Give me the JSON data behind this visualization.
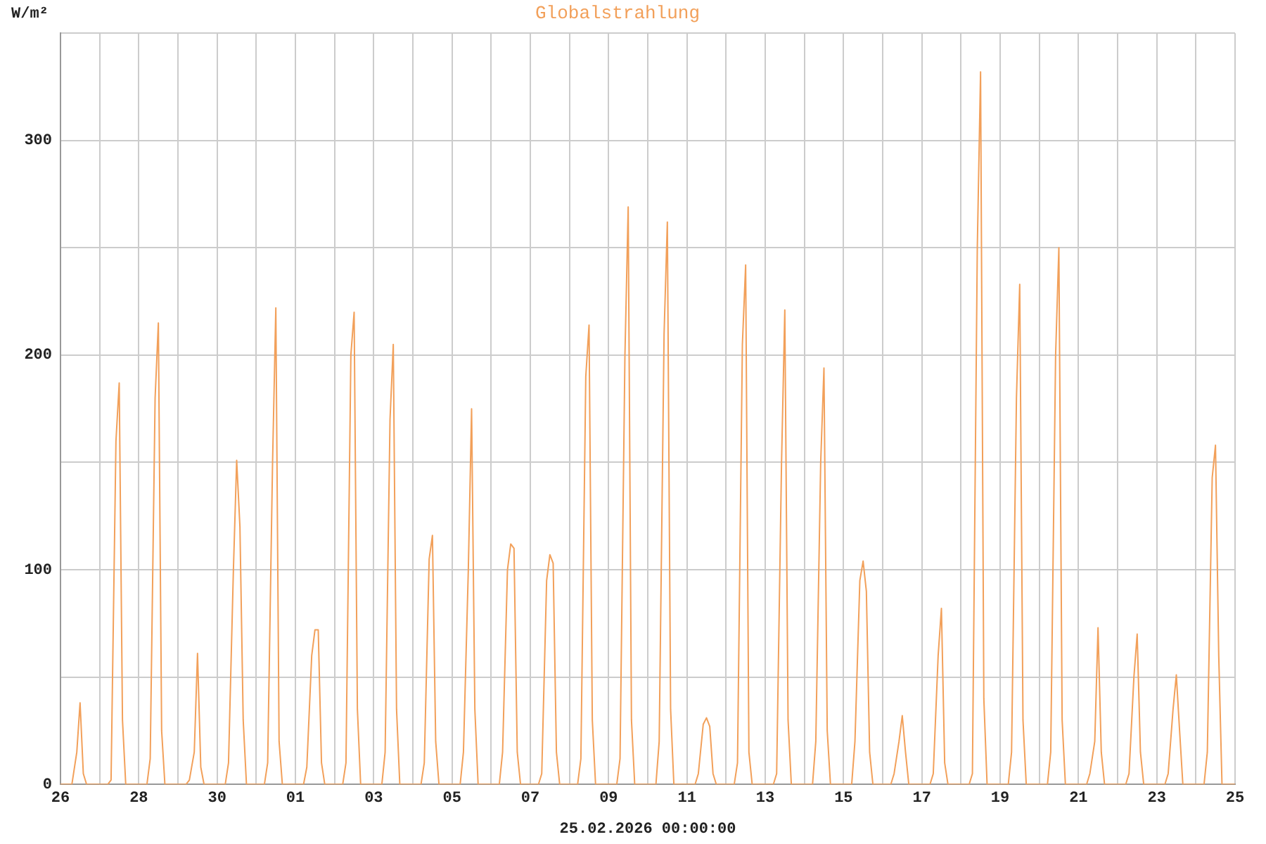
{
  "chart_data": {
    "type": "line",
    "title": "Globalstrahlung",
    "ylabel": "W/m²",
    "xlabel": "25.02.2026 00:00:00",
    "x": [
      "2026-01-26T00:00",
      "2026-01-26T05:00",
      "2026-01-26T07:00",
      "2026-01-26T10:00",
      "2026-01-26T12:00",
      "2026-01-26T14:00",
      "2026-01-26T16:00",
      "2026-01-26T18:00",
      "2026-01-27T05:00",
      "2026-01-27T07:00",
      "2026-01-27T10:00",
      "2026-01-27T12:00",
      "2026-01-27T14:00",
      "2026-01-27T16:00",
      "2026-01-27T18:00",
      "2026-01-28T05:00",
      "2026-01-28T07:00",
      "2026-01-28T10:00",
      "2026-01-28T12:00",
      "2026-01-28T14:00",
      "2026-01-28T16:00",
      "2026-01-28T18:00",
      "2026-01-29T05:00",
      "2026-01-29T07:00",
      "2026-01-29T10:00",
      "2026-01-29T12:00",
      "2026-01-29T14:00",
      "2026-01-29T16:00",
      "2026-01-29T18:00",
      "2026-01-30T05:00",
      "2026-01-30T07:00",
      "2026-01-30T10:00",
      "2026-01-30T12:00",
      "2026-01-30T14:00",
      "2026-01-30T16:00",
      "2026-01-30T18:00",
      "2026-01-31T05:00",
      "2026-01-31T07:00",
      "2026-01-31T10:00",
      "2026-01-31T12:00",
      "2026-01-31T14:00",
      "2026-01-31T16:00",
      "2026-01-31T18:00",
      "2026-02-01T05:00",
      "2026-02-01T07:00",
      "2026-02-01T10:00",
      "2026-02-01T12:00",
      "2026-02-01T14:00",
      "2026-02-01T16:00",
      "2026-02-01T18:00",
      "2026-02-02T05:00",
      "2026-02-02T07:00",
      "2026-02-02T10:00",
      "2026-02-02T12:00",
      "2026-02-02T14:00",
      "2026-02-02T16:00",
      "2026-02-02T18:00",
      "2026-02-03T05:00",
      "2026-02-03T07:00",
      "2026-02-03T10:00",
      "2026-02-03T12:00",
      "2026-02-03T14:00",
      "2026-02-03T16:00",
      "2026-02-03T18:00",
      "2026-02-04T05:00",
      "2026-02-04T07:00",
      "2026-02-04T10:00",
      "2026-02-04T12:00",
      "2026-02-04T14:00",
      "2026-02-04T16:00",
      "2026-02-04T18:00",
      "2026-02-05T05:00",
      "2026-02-05T07:00",
      "2026-02-05T10:00",
      "2026-02-05T12:00",
      "2026-02-05T14:00",
      "2026-02-05T16:00",
      "2026-02-05T18:00",
      "2026-02-06T05:00",
      "2026-02-06T07:00",
      "2026-02-06T10:00",
      "2026-02-06T12:00",
      "2026-02-06T14:00",
      "2026-02-06T16:00",
      "2026-02-06T18:00",
      "2026-02-07T05:00",
      "2026-02-07T07:00",
      "2026-02-07T10:00",
      "2026-02-07T12:00",
      "2026-02-07T14:00",
      "2026-02-07T16:00",
      "2026-02-07T18:00",
      "2026-02-08T05:00",
      "2026-02-08T07:00",
      "2026-02-08T10:00",
      "2026-02-08T12:00",
      "2026-02-08T14:00",
      "2026-02-08T16:00",
      "2026-02-08T18:00",
      "2026-02-09T05:00",
      "2026-02-09T07:00",
      "2026-02-09T10:00",
      "2026-02-09T12:00",
      "2026-02-09T14:00",
      "2026-02-09T16:00",
      "2026-02-09T18:00",
      "2026-02-10T05:00",
      "2026-02-10T07:00",
      "2026-02-10T10:00",
      "2026-02-10T12:00",
      "2026-02-10T14:00",
      "2026-02-10T16:00",
      "2026-02-10T18:00",
      "2026-02-11T05:00",
      "2026-02-11T07:00",
      "2026-02-11T10:00",
      "2026-02-11T12:00",
      "2026-02-11T14:00",
      "2026-02-11T16:00",
      "2026-02-11T18:00",
      "2026-02-12T05:00",
      "2026-02-12T07:00",
      "2026-02-12T10:00",
      "2026-02-12T12:00",
      "2026-02-12T14:00",
      "2026-02-12T16:00",
      "2026-02-12T18:00",
      "2026-02-13T05:00",
      "2026-02-13T07:00",
      "2026-02-13T10:00",
      "2026-02-13T12:00",
      "2026-02-13T14:00",
      "2026-02-13T16:00",
      "2026-02-13T18:00",
      "2026-02-14T05:00",
      "2026-02-14T07:00",
      "2026-02-14T10:00",
      "2026-02-14T12:00",
      "2026-02-14T14:00",
      "2026-02-14T16:00",
      "2026-02-14T18:00",
      "2026-02-15T05:00",
      "2026-02-15T07:00",
      "2026-02-15T10:00",
      "2026-02-15T12:00",
      "2026-02-15T14:00",
      "2026-02-15T16:00",
      "2026-02-15T18:00",
      "2026-02-16T05:00",
      "2026-02-16T07:00",
      "2026-02-16T10:00",
      "2026-02-16T12:00",
      "2026-02-16T14:00",
      "2026-02-16T16:00",
      "2026-02-16T18:00",
      "2026-02-17T05:00",
      "2026-02-17T07:00",
      "2026-02-17T10:00",
      "2026-02-17T12:00",
      "2026-02-17T14:00",
      "2026-02-17T16:00",
      "2026-02-17T18:00",
      "2026-02-18T05:00",
      "2026-02-18T07:00",
      "2026-02-18T10:00",
      "2026-02-18T12:00",
      "2026-02-18T14:00",
      "2026-02-18T16:00",
      "2026-02-18T18:00",
      "2026-02-19T05:00",
      "2026-02-19T07:00",
      "2026-02-19T10:00",
      "2026-02-19T12:00",
      "2026-02-19T14:00",
      "2026-02-19T16:00",
      "2026-02-19T18:00",
      "2026-02-20T05:00",
      "2026-02-20T07:00",
      "2026-02-20T10:00",
      "2026-02-20T12:00",
      "2026-02-20T14:00",
      "2026-02-20T16:00",
      "2026-02-20T18:00",
      "2026-02-21T05:00",
      "2026-02-21T07:00",
      "2026-02-21T10:00",
      "2026-02-21T12:00",
      "2026-02-21T14:00",
      "2026-02-21T16:00",
      "2026-02-21T18:00",
      "2026-02-22T05:00",
      "2026-02-22T07:00",
      "2026-02-22T10:00",
      "2026-02-22T12:00",
      "2026-02-22T14:00",
      "2026-02-22T16:00",
      "2026-02-22T18:00",
      "2026-02-23T05:00",
      "2026-02-23T07:00",
      "2026-02-23T10:00",
      "2026-02-23T12:00",
      "2026-02-23T14:00",
      "2026-02-23T16:00",
      "2026-02-23T18:00",
      "2026-02-24T05:00",
      "2026-02-24T07:00",
      "2026-02-24T10:00",
      "2026-02-24T12:00",
      "2026-02-24T14:00",
      "2026-02-24T16:00",
      "2026-02-24T18:00",
      "2026-02-25T00:00"
    ],
    "series": [
      {
        "color": "#f2a05a",
        "values": [
          0,
          0,
          0,
          15,
          38,
          5,
          0,
          0,
          0,
          2,
          160,
          187,
          30,
          0,
          0,
          0,
          12,
          180,
          215,
          25,
          0,
          0,
          0,
          2,
          15,
          61,
          8,
          0,
          0,
          0,
          10,
          100,
          151,
          120,
          30,
          0,
          0,
          10,
          150,
          222,
          20,
          0,
          0,
          0,
          8,
          60,
          72,
          72,
          10,
          0,
          0,
          10,
          200,
          220,
          35,
          0,
          0,
          0,
          15,
          170,
          205,
          35,
          0,
          0,
          0,
          10,
          105,
          116,
          20,
          0,
          0,
          0,
          15,
          100,
          175,
          35,
          0,
          0,
          0,
          15,
          100,
          112,
          110,
          15,
          0,
          0,
          5,
          95,
          107,
          103,
          15,
          0,
          0,
          12,
          190,
          214,
          30,
          0,
          0,
          0,
          12,
          200,
          269,
          30,
          0,
          0,
          0,
          20,
          210,
          262,
          35,
          0,
          0,
          0,
          5,
          28,
          31,
          27,
          5,
          0,
          0,
          10,
          205,
          242,
          15,
          0,
          0,
          0,
          5,
          150,
          221,
          30,
          0,
          0,
          0,
          20,
          150,
          194,
          25,
          0,
          0,
          0,
          20,
          95,
          104,
          90,
          15,
          0,
          0,
          5,
          20,
          32,
          15,
          0,
          0,
          0,
          5,
          60,
          82,
          10,
          0,
          0,
          0,
          5,
          250,
          332,
          40,
          0,
          0,
          0,
          15,
          180,
          233,
          30,
          0,
          0,
          0,
          15,
          200,
          250,
          30,
          0,
          0,
          0,
          5,
          20,
          73,
          15,
          0,
          0,
          0,
          5,
          50,
          70,
          15,
          0,
          0,
          0,
          5,
          35,
          51,
          25,
          0,
          0,
          0,
          15,
          143,
          158,
          60,
          0,
          0,
          0
        ]
      }
    ],
    "xlim": [
      "2026-01-26",
      "2026-02-25"
    ],
    "xticks": [
      {
        "value": "2026-01-26",
        "label": "26"
      },
      {
        "value": "2026-01-27",
        "label": null
      },
      {
        "value": "2026-01-28",
        "label": "28"
      },
      {
        "value": "2026-01-29",
        "label": null
      },
      {
        "value": "2026-01-30",
        "label": "30"
      },
      {
        "value": "2026-01-31",
        "label": null
      },
      {
        "value": "2026-02-01",
        "label": "01"
      },
      {
        "value": "2026-02-02",
        "label": null
      },
      {
        "value": "2026-02-03",
        "label": "03"
      },
      {
        "value": "2026-02-04",
        "label": null
      },
      {
        "value": "2026-02-05",
        "label": "05"
      },
      {
        "value": "2026-02-06",
        "label": null
      },
      {
        "value": "2026-02-07",
        "label": "07"
      },
      {
        "value": "2026-02-08",
        "label": null
      },
      {
        "value": "2026-02-09",
        "label": "09"
      },
      {
        "value": "2026-02-10",
        "label": null
      },
      {
        "value": "2026-02-11",
        "label": "11"
      },
      {
        "value": "2026-02-12",
        "label": null
      },
      {
        "value": "2026-02-13",
        "label": "13"
      },
      {
        "value": "2026-02-14",
        "label": null
      },
      {
        "value": "2026-02-15",
        "label": "15"
      },
      {
        "value": "2026-02-16",
        "label": null
      },
      {
        "value": "2026-02-17",
        "label": "17"
      },
      {
        "value": "2026-02-18",
        "label": null
      },
      {
        "value": "2026-02-19",
        "label": "19"
      },
      {
        "value": "2026-02-20",
        "label": null
      },
      {
        "value": "2026-02-21",
        "label": "21"
      },
      {
        "value": "2026-02-22",
        "label": null
      },
      {
        "value": "2026-02-23",
        "label": "23"
      },
      {
        "value": "2026-02-24",
        "label": null
      },
      {
        "value": "2026-02-25",
        "label": "25"
      }
    ],
    "ylim": [
      0,
      350
    ],
    "yticks": [
      0,
      {
        "value": 50,
        "label": null
      },
      100,
      {
        "value": 150,
        "label": null
      },
      200,
      {
        "value": 250,
        "label": null
      },
      300,
      {
        "value": 350,
        "label": null
      }
    ],
    "grid": true,
    "legend": false,
    "marker": "none",
    "line_style": "solid"
  }
}
